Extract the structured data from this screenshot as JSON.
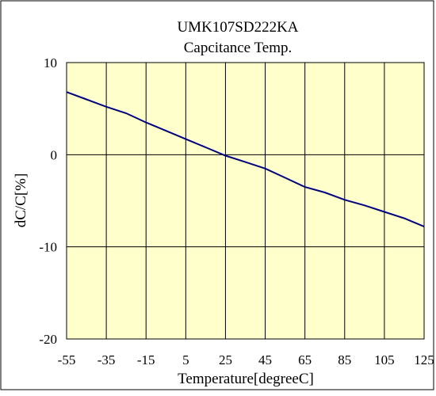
{
  "chart_data": {
    "type": "line",
    "title": "UMK107SD222KA",
    "subtitle": "Capcitance Temp.",
    "xlabel": "Temperature[degreeC]",
    "ylabel": "dC/C[%]",
    "xlim": [
      -55,
      125
    ],
    "ylim": [
      -20,
      10
    ],
    "x_ticks": [
      "-55",
      "-35",
      "-15",
      "5",
      "25",
      "45",
      "65",
      "85",
      "105",
      "125"
    ],
    "y_ticks": [
      "10",
      "0",
      "-10",
      "-20"
    ],
    "grid": true,
    "legend": "none",
    "series": [
      {
        "x": [
          -55,
          -45,
          -35,
          -25,
          -15,
          -5,
          5,
          15,
          25,
          35,
          45,
          55,
          65,
          75,
          85,
          95,
          105,
          115,
          125
        ],
        "y": [
          6.8,
          6.0,
          5.2,
          4.5,
          3.5,
          2.6,
          1.7,
          0.8,
          -0.1,
          -0.8,
          -1.5,
          -2.5,
          -3.5,
          -4.1,
          -4.9,
          -5.5,
          -6.2,
          -6.9,
          -7.8
        ],
        "color": "#00007f"
      }
    ],
    "colors": {
      "plot_background": "#ffffcc",
      "grid": "#000000",
      "frame": "#000000",
      "line": "#00007f"
    }
  }
}
